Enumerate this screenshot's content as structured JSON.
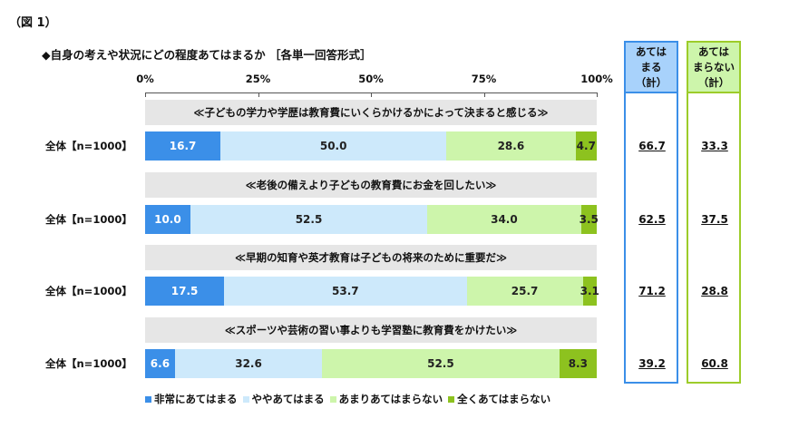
{
  "figure_label": "（図 1）",
  "chart_data": {
    "type": "bar",
    "orientation": "horizontal-stacked-100",
    "title": "◆自身の考えや状況にどの程度あてはまるか ［各単一回答形式］",
    "xlim": [
      0,
      100
    ],
    "x_ticks": [
      "0%",
      "25%",
      "50%",
      "75%",
      "100%"
    ],
    "legend_position": "bottom",
    "series_names": [
      "非常にあてはまる",
      "ややあてはまる",
      "あまりあてはまらない",
      "全くあてはまらない"
    ],
    "colors": [
      "#3b8fe8",
      "#cde9fb",
      "#cdf5ab",
      "#8dc21f"
    ],
    "rows": [
      {
        "question": "≪子どもの学力や学歴は教育費にいくらかけるかによって決まると感じる≫",
        "label": "全体【n=1000】",
        "values": [
          16.7,
          50.0,
          28.6,
          4.7
        ],
        "total_yes": "66.7",
        "total_no": "33.3"
      },
      {
        "question": "≪老後の備えより子どもの教育費にお金を回したい≫",
        "label": "全体【n=1000】",
        "values": [
          10.0,
          52.5,
          34.0,
          3.5
        ],
        "total_yes": "62.5",
        "total_no": "37.5"
      },
      {
        "question": "≪早期の知育や英才教育は子どもの将来のために重要だ≫",
        "label": "全体【n=1000】",
        "values": [
          17.5,
          53.7,
          25.7,
          3.1
        ],
        "total_yes": "71.2",
        "total_no": "28.8"
      },
      {
        "question": "≪スポーツや芸術の習い事よりも学習塾に教育費をかけたい≫",
        "label": "全体【n=1000】",
        "values": [
          6.6,
          32.6,
          52.5,
          8.3
        ],
        "total_yes": "39.2",
        "total_no": "60.8"
      }
    ],
    "total_yes_header": [
      "あては",
      "まる",
      "（計）"
    ],
    "total_no_header": [
      "あては",
      "まらない",
      "（計）"
    ],
    "box_colors": {
      "yes": "#3b8fe8",
      "no": "#9dcc2a",
      "yes_head": "#a8d2fb",
      "no_head": "#cdf5ab"
    }
  }
}
